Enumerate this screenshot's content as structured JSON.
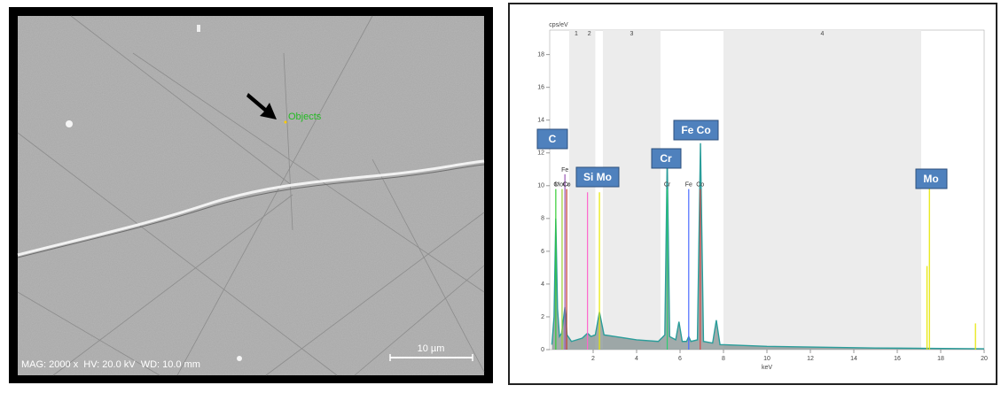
{
  "sem_image": {
    "objects_label": "Objects",
    "scale_bar": "10 µm",
    "info": "MAG: 2000 x  HV: 20.0 kV  WD: 10.0 mm"
  },
  "chart_data": {
    "type": "line",
    "y_label": "cps/eV",
    "x_label": "keV",
    "xlim": [
      0,
      20
    ],
    "ylim": [
      0,
      19.5
    ],
    "xticks": [
      2,
      4,
      6,
      8,
      10,
      12,
      14,
      16,
      18,
      20
    ],
    "yticks": [
      0,
      2,
      4,
      6,
      8,
      10,
      12,
      14,
      16,
      18
    ],
    "regions": [
      {
        "label": "1",
        "start": 0.9,
        "end": 1.55
      },
      {
        "label": "2",
        "start": 1.55,
        "end": 2.1
      },
      {
        "label": "3",
        "start": 2.45,
        "end": 5.1
      },
      {
        "label": "4",
        "start": 8.0,
        "end": 17.1
      }
    ],
    "x": [
      0.1,
      0.2,
      0.28,
      0.36,
      0.45,
      0.55,
      0.7,
      0.8,
      1.0,
      1.5,
      1.74,
      1.9,
      2.1,
      2.29,
      2.5,
      3.0,
      4.0,
      5.0,
      5.3,
      5.41,
      5.52,
      5.8,
      5.95,
      6.1,
      6.3,
      6.4,
      6.5,
      6.8,
      6.94,
      7.08,
      7.5,
      7.67,
      7.84,
      8.0,
      10.0,
      15.0,
      20.0
    ],
    "values": [
      0.3,
      2.0,
      8.0,
      2.5,
      0.8,
      1.0,
      2.6,
      0.9,
      0.5,
      0.7,
      1.0,
      0.8,
      0.9,
      2.3,
      0.9,
      0.8,
      0.6,
      0.5,
      0.9,
      11.8,
      0.8,
      0.6,
      1.7,
      0.5,
      0.5,
      0.8,
      0.5,
      0.6,
      12.6,
      0.5,
      0.4,
      1.8,
      0.3,
      0.3,
      0.2,
      0.1,
      0.05
    ],
    "color": "#2a9d9a",
    "markers": [
      {
        "x": 0.28,
        "height": 9.8,
        "color": "#33cc33",
        "label": "C"
      },
      {
        "x": 0.57,
        "height": 9.8,
        "color": "#9acd32",
        "label": "MoCr"
      },
      {
        "x": 0.7,
        "height": 10.7,
        "color": "#9b59b6",
        "label": "Fe"
      },
      {
        "x": 0.78,
        "height": 9.8,
        "color": "#c0392b",
        "label": "Co"
      },
      {
        "x": 1.74,
        "height": 9.6,
        "color": "#ff66cc"
      },
      {
        "x": 2.29,
        "height": 9.6,
        "color": "#e6e600"
      },
      {
        "x": 5.41,
        "height": 9.8,
        "color": "#2ecc71",
        "label": "Cr"
      },
      {
        "x": 6.4,
        "height": 9.8,
        "color": "#4a6cff",
        "label": "Fe"
      },
      {
        "x": 6.93,
        "height": 9.8,
        "color": "#d64545",
        "label": "Co"
      },
      {
        "x": 17.37,
        "height": 5.1,
        "color": "#e6e600"
      },
      {
        "x": 17.48,
        "height": 10.0,
        "color": "#e6e600"
      },
      {
        "x": 19.6,
        "height": 1.6,
        "color": "#e6e600"
      }
    ],
    "element_boxes": [
      "C",
      "Si Mo",
      "Cr",
      "Fe Co",
      "Mo"
    ]
  }
}
